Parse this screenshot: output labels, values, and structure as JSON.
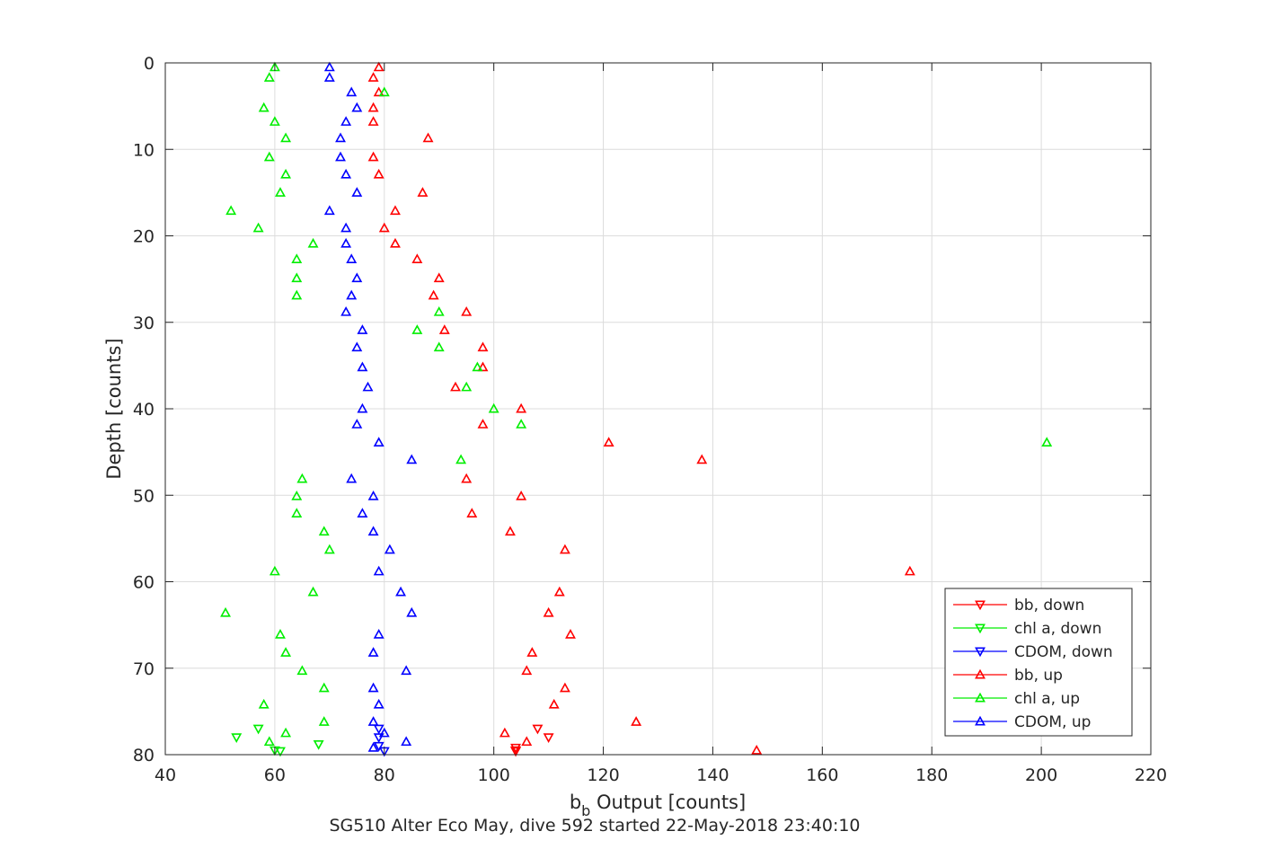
{
  "chart_data": {
    "type": "scatter",
    "xlabel_main": "b",
    "xlabel_sub": "b",
    "xlabel_rest": " Output [counts]",
    "ylabel": "Depth [counts]",
    "caption": "SG510 Alter Eco May, dive 592 started 22-May-2018 23:40:10",
    "xlim": [
      40,
      220
    ],
    "ylim": [
      0,
      80
    ],
    "y_reversed": true,
    "grid": true,
    "legend_position": "bottom-right",
    "xticks": [
      "40",
      "60",
      "80",
      "100",
      "120",
      "140",
      "160",
      "180",
      "200",
      "220"
    ],
    "yticks": [
      "0",
      "10",
      "20",
      "30",
      "40",
      "50",
      "60",
      "70",
      "80"
    ],
    "series": [
      {
        "name": "bb, down",
        "color": "#ff0000",
        "marker": "triangle-down",
        "points": [
          [
            104,
            79.2
          ],
          [
            104,
            79.5
          ],
          [
            108,
            77.0
          ],
          [
            110,
            78.0
          ],
          [
            104,
            79.6
          ]
        ]
      },
      {
        "name": "chl a, down",
        "color": "#00ee00",
        "marker": "triangle-down",
        "points": [
          [
            57,
            77.0
          ],
          [
            53,
            78.0
          ],
          [
            60,
            79.5
          ],
          [
            61,
            79.6
          ],
          [
            68,
            78.8
          ]
        ]
      },
      {
        "name": "CDOM, down",
        "color": "#0000ff",
        "marker": "triangle-down",
        "points": [
          [
            79,
            77.0
          ],
          [
            79,
            78.0
          ],
          [
            79,
            79.0
          ],
          [
            80,
            79.6
          ]
        ]
      },
      {
        "name": "bb, up",
        "color": "#ff0000",
        "marker": "triangle-up",
        "points": [
          [
            79,
            0.5
          ],
          [
            78,
            1.7
          ],
          [
            79,
            3.4
          ],
          [
            78,
            5.2
          ],
          [
            78,
            6.8
          ],
          [
            88,
            8.7
          ],
          [
            78,
            10.9
          ],
          [
            79,
            12.9
          ],
          [
            87,
            15.0
          ],
          [
            82,
            17.1
          ],
          [
            80,
            19.1
          ],
          [
            82,
            20.9
          ],
          [
            86,
            22.7
          ],
          [
            90,
            24.9
          ],
          [
            89,
            26.9
          ],
          [
            95,
            28.8
          ],
          [
            91,
            30.9
          ],
          [
            98,
            32.9
          ],
          [
            98,
            35.2
          ],
          [
            93,
            37.5
          ],
          [
            105,
            40.0
          ],
          [
            98,
            41.8
          ],
          [
            121,
            43.9
          ],
          [
            138,
            45.9
          ],
          [
            95,
            48.1
          ],
          [
            105,
            50.1
          ],
          [
            96,
            52.1
          ],
          [
            103,
            54.2
          ],
          [
            113,
            56.3
          ],
          [
            176,
            58.8
          ],
          [
            112,
            61.2
          ],
          [
            110,
            63.6
          ],
          [
            114,
            66.1
          ],
          [
            107,
            68.2
          ],
          [
            106,
            70.3
          ],
          [
            113,
            72.3
          ],
          [
            111,
            74.2
          ],
          [
            126,
            76.2
          ],
          [
            102,
            77.5
          ],
          [
            106,
            78.5
          ],
          [
            148,
            79.5
          ]
        ]
      },
      {
        "name": "chl a, up",
        "color": "#00ee00",
        "marker": "triangle-up",
        "points": [
          [
            60,
            0.5
          ],
          [
            59,
            1.7
          ],
          [
            80,
            3.4
          ],
          [
            58,
            5.2
          ],
          [
            60,
            6.8
          ],
          [
            62,
            8.7
          ],
          [
            59,
            10.9
          ],
          [
            62,
            12.9
          ],
          [
            61,
            15.0
          ],
          [
            52,
            17.1
          ],
          [
            57,
            19.1
          ],
          [
            67,
            20.9
          ],
          [
            64,
            22.7
          ],
          [
            64,
            24.9
          ],
          [
            64,
            26.9
          ],
          [
            90,
            28.8
          ],
          [
            86,
            30.9
          ],
          [
            90,
            32.9
          ],
          [
            97,
            35.2
          ],
          [
            95,
            37.5
          ],
          [
            100,
            40.0
          ],
          [
            105,
            41.8
          ],
          [
            201,
            43.9
          ],
          [
            94,
            45.9
          ],
          [
            65,
            48.1
          ],
          [
            64,
            50.1
          ],
          [
            64,
            52.1
          ],
          [
            69,
            54.2
          ],
          [
            70,
            56.3
          ],
          [
            60,
            58.8
          ],
          [
            67,
            61.2
          ],
          [
            51,
            63.6
          ],
          [
            61,
            66.1
          ],
          [
            62,
            68.2
          ],
          [
            65,
            70.3
          ],
          [
            69,
            72.3
          ],
          [
            58,
            74.2
          ],
          [
            69,
            76.2
          ],
          [
            62,
            77.5
          ],
          [
            59,
            78.5
          ]
        ]
      },
      {
        "name": "CDOM, up",
        "color": "#0000ff",
        "marker": "triangle-up",
        "points": [
          [
            70,
            0.5
          ],
          [
            70,
            1.7
          ],
          [
            74,
            3.4
          ],
          [
            75,
            5.2
          ],
          [
            73,
            6.8
          ],
          [
            72,
            8.7
          ],
          [
            72,
            10.9
          ],
          [
            73,
            12.9
          ],
          [
            75,
            15.0
          ],
          [
            70,
            17.1
          ],
          [
            73,
            19.1
          ],
          [
            73,
            20.9
          ],
          [
            74,
            22.7
          ],
          [
            75,
            24.9
          ],
          [
            74,
            26.9
          ],
          [
            73,
            28.8
          ],
          [
            76,
            30.9
          ],
          [
            75,
            32.9
          ],
          [
            76,
            35.2
          ],
          [
            77,
            37.5
          ],
          [
            76,
            40.0
          ],
          [
            75,
            41.8
          ],
          [
            79,
            43.9
          ],
          [
            85,
            45.9
          ],
          [
            74,
            48.1
          ],
          [
            78,
            50.1
          ],
          [
            76,
            52.1
          ],
          [
            78,
            54.2
          ],
          [
            81,
            56.3
          ],
          [
            79,
            58.8
          ],
          [
            83,
            61.2
          ],
          [
            85,
            63.6
          ],
          [
            79,
            66.1
          ],
          [
            78,
            68.2
          ],
          [
            84,
            70.3
          ],
          [
            78,
            72.3
          ],
          [
            79,
            74.2
          ],
          [
            78,
            76.2
          ],
          [
            80,
            77.5
          ],
          [
            84,
            78.5
          ],
          [
            78,
            79.2
          ]
        ]
      }
    ]
  }
}
